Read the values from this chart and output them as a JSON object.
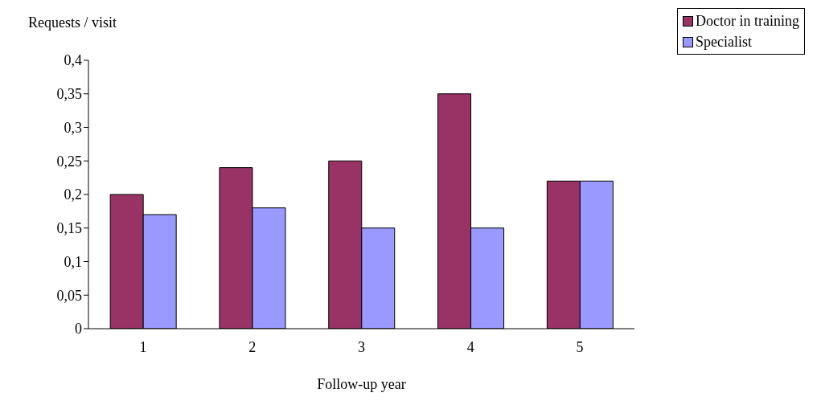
{
  "chart_data": {
    "type": "bar",
    "ylabel": "Requests / visit",
    "xlabel": "Follow-up year",
    "categories": [
      "1",
      "2",
      "3",
      "4",
      "5"
    ],
    "series": [
      {
        "name": "Doctor in training",
        "color": "#993366",
        "values": [
          0.2,
          0.24,
          0.25,
          0.35,
          0.22
        ]
      },
      {
        "name": "Specialist",
        "color": "#9999ff",
        "values": [
          0.17,
          0.18,
          0.15,
          0.15,
          0.22
        ]
      }
    ],
    "ylim": [
      0,
      0.4
    ],
    "yticks": [
      {
        "value": 0,
        "label": "0"
      },
      {
        "value": 0.05,
        "label": "0,05"
      },
      {
        "value": 0.1,
        "label": "0,1"
      },
      {
        "value": 0.15,
        "label": "0,15"
      },
      {
        "value": 0.2,
        "label": "0,2"
      },
      {
        "value": 0.25,
        "label": "0,25"
      },
      {
        "value": 0.3,
        "label": "0,3"
      },
      {
        "value": 0.35,
        "label": "0,35"
      },
      {
        "value": 0.4,
        "label": "0,4"
      }
    ],
    "grid": false,
    "legend": "top right"
  }
}
